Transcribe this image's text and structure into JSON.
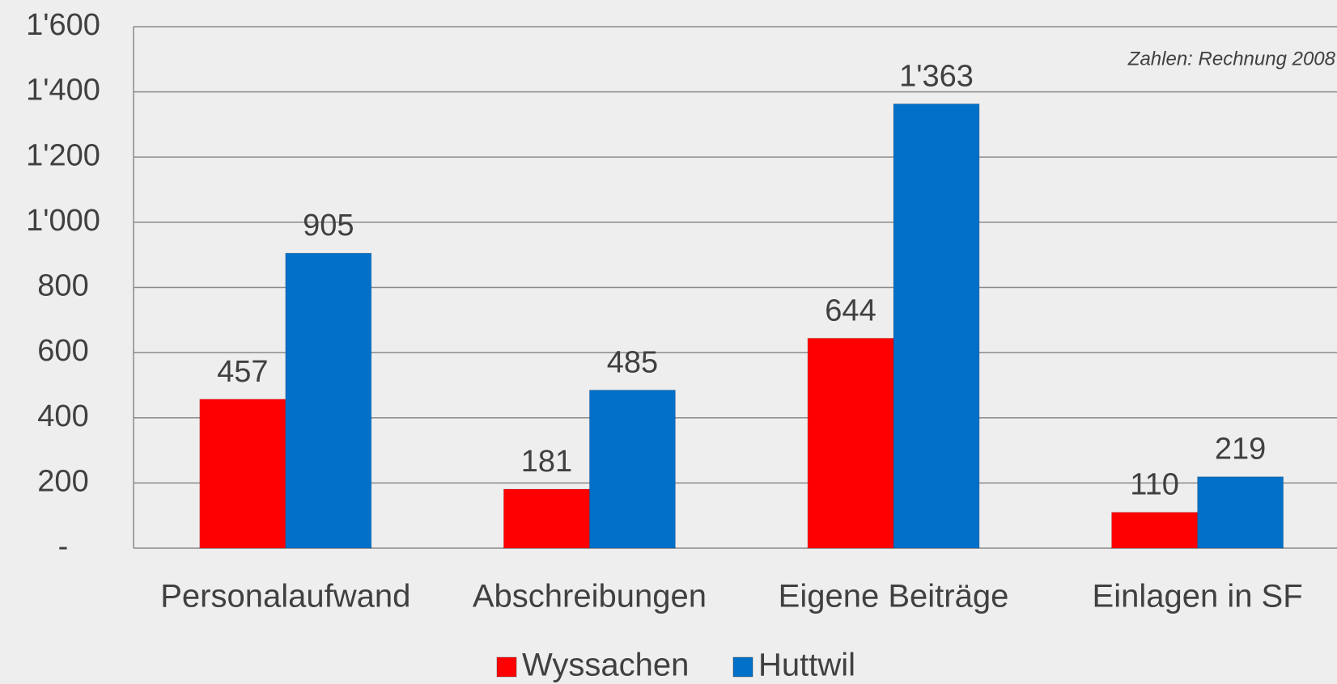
{
  "chart_data": {
    "type": "bar",
    "annotation": "Zahlen: Rechnung 2008",
    "categories": [
      "Personalaufwand",
      "Abschreibungen",
      "Eigene Beiträge",
      "Einlagen in SF"
    ],
    "series": [
      {
        "name": "Wyssachen",
        "color": "#ff0000",
        "values": [
          457,
          181,
          644,
          110
        ]
      },
      {
        "name": "Huttwil",
        "color": "#0070c8",
        "values": [
          905,
          485,
          1363,
          219
        ],
        "value_labels": [
          "905",
          "485",
          "1'363",
          "219"
        ]
      }
    ],
    "ylim": [
      0,
      1600
    ],
    "yticks": [
      {
        "value": 0,
        "label": "-"
      },
      200,
      400,
      600,
      800,
      {
        "value": 1000,
        "label": "1'000"
      },
      {
        "value": 1200,
        "label": "1'200"
      },
      {
        "value": 1400,
        "label": "1'400"
      },
      {
        "value": 1600,
        "label": "1'600"
      }
    ],
    "grid": true,
    "legend": "bottom"
  }
}
